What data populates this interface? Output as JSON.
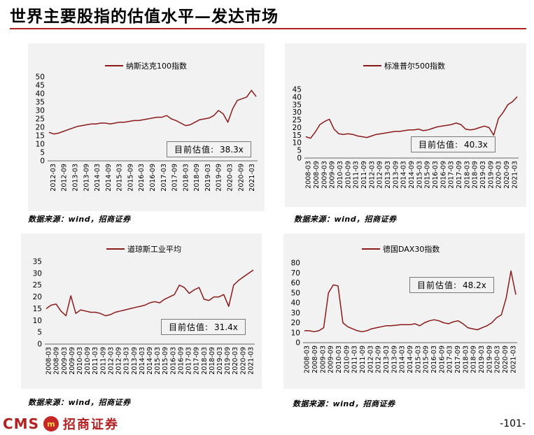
{
  "page": {
    "title": "世界主要股指的估值水平—发达市场",
    "page_number": "-101-",
    "logo_text_en": "CMS",
    "logo_text_cn": "招商证券",
    "accent_color": "#b22222"
  },
  "chart_data": [
    {
      "type": "line",
      "title": "",
      "legend": "纳斯达克100指数",
      "legend_position": "top",
      "current_label": "目前估值:",
      "current_value": "38.3x",
      "source": "数据来源：wind，招商证券",
      "ylim": [
        0,
        50
      ],
      "yticks": [
        "0",
        "5",
        "10",
        "15",
        "20",
        "25",
        "30",
        "35",
        "40",
        "45",
        "50"
      ],
      "xticks": [
        "2012-03",
        "2012-09",
        "2013-03",
        "2013-09",
        "2014-03",
        "2014-09",
        "2015-03",
        "2015-09",
        "2016-03",
        "2016-09",
        "2017-03",
        "2017-09",
        "2018-03",
        "2018-09",
        "2019-03",
        "2019-09",
        "2020-03",
        "2020-09",
        "2021-03"
      ],
      "line_color": "#8b1a1a",
      "series": [
        {
          "name": "纳斯达克100指数",
          "values": [
            17,
            16,
            16.5,
            17.5,
            18.5,
            19.5,
            20.5,
            21,
            21.5,
            22,
            22,
            22.5,
            22.5,
            22,
            22.5,
            23,
            23,
            23.5,
            24,
            24,
            24.5,
            25,
            25.5,
            26,
            26,
            27,
            25,
            24,
            22.5,
            21,
            21.5,
            23,
            24.5,
            25,
            25.5,
            27,
            30,
            28,
            23,
            31,
            36,
            37,
            38,
            42,
            38.3
          ]
        }
      ]
    },
    {
      "type": "line",
      "title": "",
      "legend": "标准普尔500指数",
      "legend_position": "top",
      "current_label": "目前估值:",
      "current_value": "40.3x",
      "source": "数据来源：wind，招商证券",
      "ylim": [
        0,
        45
      ],
      "yticks": [
        "0",
        "5",
        "10",
        "15",
        "20",
        "25",
        "30",
        "35",
        "40",
        "45"
      ],
      "xticks": [
        "2008-03",
        "2008-09",
        "2009-03",
        "2009-09",
        "2010-03",
        "2010-09",
        "2011-03",
        "2011-09",
        "2012-03",
        "2012-09",
        "2013-03",
        "2013-09",
        "2014-03",
        "2014-09",
        "2015-03",
        "2015-09",
        "2016-03",
        "2016-09",
        "2017-03",
        "2017-09",
        "2018-03",
        "2018-09",
        "2019-03",
        "2019-09",
        "2020-03",
        "2020-09",
        "2021-03"
      ],
      "line_color": "#8b1a1a",
      "series": [
        {
          "name": "标准普尔500指数",
          "values": [
            14,
            13,
            17,
            22,
            24,
            25.5,
            19,
            16,
            15.5,
            16,
            15.5,
            14.5,
            14,
            13.5,
            14.5,
            15.5,
            16,
            16.5,
            17,
            17.5,
            17.5,
            18,
            18.5,
            18.5,
            19,
            18,
            18.5,
            19.5,
            20.5,
            21,
            21.5,
            22,
            23,
            22,
            19,
            18.5,
            19,
            20,
            21,
            20,
            15,
            26,
            30,
            35,
            37,
            40.3
          ]
        }
      ]
    },
    {
      "type": "line",
      "title": "",
      "legend": "道琼斯工业平均",
      "legend_position": "top",
      "current_label": "目前估值:",
      "current_value": "31.4x",
      "source": "数据来源：wind，招商证券",
      "ylim": [
        0,
        35
      ],
      "yticks": [
        "0",
        "5",
        "10",
        "15",
        "20",
        "25",
        "30",
        "35"
      ],
      "xticks": [
        "2008-03",
        "2008-09",
        "2009-03",
        "2009-09",
        "2010-03",
        "2010-09",
        "2011-03",
        "2011-09",
        "2012-03",
        "2012-09",
        "2013-03",
        "2013-09",
        "2014-03",
        "2014-09",
        "2015-03",
        "2015-09",
        "2016-03",
        "2016-09",
        "2017-03",
        "2017-09",
        "2018-03",
        "2018-09",
        "2019-03",
        "2019-09",
        "2020-03",
        "2020-09",
        "2021-03"
      ],
      "line_color": "#8b1a1a",
      "series": [
        {
          "name": "道琼斯工业平均",
          "values": [
            15,
            16.5,
            17,
            14,
            12,
            20.5,
            13,
            14.5,
            14,
            13.5,
            13.5,
            13,
            12,
            12.5,
            13.5,
            14,
            14.5,
            15,
            15.5,
            16,
            16.5,
            17.5,
            18,
            17.5,
            19,
            20,
            21,
            25,
            24,
            21.5,
            23,
            24,
            19,
            18.5,
            20,
            20,
            21,
            16,
            25,
            27,
            28.5,
            30,
            31.4
          ]
        }
      ]
    },
    {
      "type": "line",
      "title": "",
      "legend": "德国DAX30指数",
      "legend_position": "top",
      "current_label": "目前估值:",
      "current_value": "48.2x",
      "source": "数据来源：wind，招商证券",
      "ylim": [
        0,
        80
      ],
      "yticks": [
        "0",
        "10",
        "20",
        "30",
        "40",
        "50",
        "60",
        "70",
        "80"
      ],
      "xticks": [
        "2008-03",
        "2008-09",
        "2009-03",
        "2009-09",
        "2010-03",
        "2010-09",
        "2011-03",
        "2011-09",
        "2012-03",
        "2012-09",
        "2013-03",
        "2013-09",
        "2014-03",
        "2014-09",
        "2015-03",
        "2015-09",
        "2016-03",
        "2016-09",
        "2017-03",
        "2017-09",
        "2018-03",
        "2018-09",
        "2019-03",
        "2019-09",
        "2020-03",
        "2020-09",
        "2021-03"
      ],
      "line_color": "#8b1a1a",
      "series": [
        {
          "name": "德国DAX30指数",
          "values": [
            12,
            12,
            11,
            12,
            15,
            50,
            58,
            57,
            20,
            16,
            14,
            12,
            11,
            12,
            14,
            15,
            16,
            17,
            17,
            17.5,
            18,
            18,
            18,
            19,
            17,
            20,
            22,
            23,
            22,
            20,
            19,
            21,
            22,
            19,
            15,
            14,
            13,
            15,
            17,
            20,
            25,
            28,
            45,
            72,
            48.2
          ]
        }
      ]
    }
  ]
}
